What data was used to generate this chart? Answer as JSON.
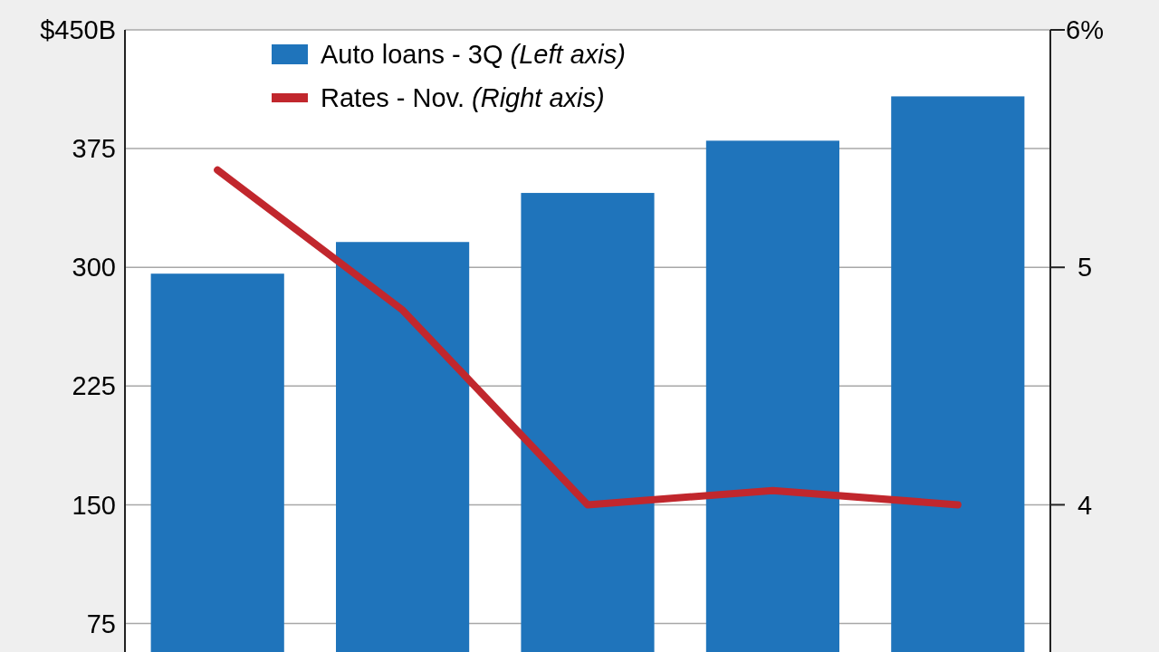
{
  "chart_data": {
    "type": "bar",
    "categories": [
      null,
      null,
      null,
      null,
      null
    ],
    "series": [
      {
        "name": "Auto loans - 3Q (Left axis)",
        "color": "#1f74bb",
        "values": [
          296,
          316,
          347,
          380,
          408
        ]
      },
      {
        "name": "Rates -  Nov. (Right axis)",
        "type": "line",
        "axis": "y2",
        "color": "#c1272d",
        "values": [
          5.41,
          4.82,
          4.0,
          4.06,
          4.0
        ]
      }
    ],
    "ylim": [
      57,
      450
    ],
    "yticks": [
      {
        "value": 75,
        "label": "75"
      },
      {
        "value": 150,
        "label": "150"
      },
      {
        "value": 225,
        "label": "225"
      },
      {
        "value": 300,
        "label": "300"
      },
      {
        "value": 375,
        "label": "375"
      },
      {
        "value": 450,
        "label": "$450B"
      }
    ],
    "y2lim": [
      3.38,
      6
    ],
    "y2ticks": [
      {
        "value": 4,
        "label": "4"
      },
      {
        "value": 5,
        "label": "5"
      },
      {
        "value": 6,
        "label": "6%"
      }
    ],
    "grid": "y",
    "legend": "top left",
    "line_style": "solid",
    "marker": "none"
  }
}
